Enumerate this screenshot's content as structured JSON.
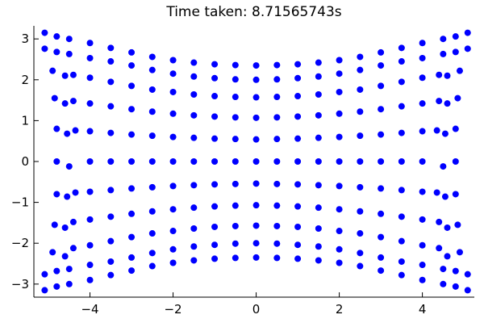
{
  "chart_data": {
    "type": "scatter",
    "title": "Time taken: 8.71565743s",
    "xlabel": "",
    "ylabel": "",
    "xlim": [
      -5.35,
      5.25
    ],
    "ylim": [
      -3.32,
      3.32
    ],
    "xticks": [
      -4,
      -2,
      0,
      2,
      4
    ],
    "yticks": [
      -3,
      -2,
      -1,
      0,
      1,
      2,
      3
    ],
    "xtick_labels": [
      "−4",
      "−2",
      "0",
      "2",
      "4"
    ],
    "ytick_labels": [
      "−3",
      "−2",
      "−1",
      "0",
      "1",
      "2",
      "3"
    ],
    "grid": false,
    "legend": "none",
    "marker_color": "#0000ff",
    "series": [
      {
        "x": [
          -5.09,
          -4.8,
          -4.5,
          -4.0,
          -3.5,
          -3.0,
          -2.5,
          -2.0,
          -1.5,
          -1.0,
          -0.5,
          0.0,
          0.5,
          1.0,
          1.5,
          2.0,
          2.5,
          3.0,
          3.5,
          4.0,
          4.5,
          4.8,
          5.09,
          -5.09,
          -4.8,
          -4.5,
          -4.0,
          -3.5,
          -3.0,
          -2.5,
          -2.0,
          -1.5,
          -1.0,
          -0.5,
          0.0,
          0.5,
          1.0,
          1.5,
          2.0,
          2.5,
          3.0,
          3.5,
          4.0,
          4.5,
          4.8,
          5.09,
          -4.9,
          -4.6,
          -4.4,
          -4.0,
          -3.5,
          -3.0,
          -2.5,
          -2.0,
          -1.5,
          -1.0,
          -0.5,
          0.0,
          0.5,
          1.0,
          1.5,
          2.0,
          2.5,
          3.0,
          3.5,
          4.0,
          4.4,
          4.6,
          4.9,
          -4.85,
          -4.6,
          -4.4,
          -4.0,
          -3.5,
          -3.0,
          -2.5,
          -2.0,
          -1.5,
          -1.0,
          -0.5,
          0.0,
          0.5,
          1.0,
          1.5,
          2.0,
          2.5,
          3.0,
          3.5,
          4.0,
          4.4,
          4.6,
          4.85,
          -4.8,
          -4.55,
          -4.35,
          -4.0,
          -3.5,
          -3.0,
          -2.5,
          -2.0,
          -1.5,
          -1.0,
          -0.5,
          0.0,
          0.5,
          1.0,
          1.5,
          2.0,
          2.5,
          3.0,
          3.5,
          4.0,
          4.35,
          4.55,
          4.8,
          -4.8,
          -4.5,
          -4.0,
          -3.5,
          -3.0,
          -2.5,
          -2.0,
          -1.5,
          -1.0,
          -0.5,
          0.0,
          0.5,
          1.0,
          1.5,
          2.0,
          2.5,
          3.0,
          3.5,
          4.0,
          4.5,
          4.8,
          -4.8,
          -4.55,
          -4.35,
          -4.0,
          -3.5,
          -3.0,
          -2.5,
          -2.0,
          -1.5,
          -1.0,
          -0.5,
          0.0,
          0.5,
          1.0,
          1.5,
          2.0,
          2.5,
          3.0,
          3.5,
          4.0,
          4.35,
          4.55,
          4.8,
          -4.85,
          -4.6,
          -4.4,
          -4.0,
          -3.5,
          -3.0,
          -2.5,
          -2.0,
          -1.5,
          -1.0,
          -0.5,
          0.0,
          0.5,
          1.0,
          1.5,
          2.0,
          2.5,
          3.0,
          3.5,
          4.0,
          4.4,
          4.6,
          4.85,
          -4.9,
          -4.6,
          -4.4,
          -4.0,
          -3.5,
          -3.0,
          -2.5,
          -2.0,
          -1.5,
          -1.0,
          -0.5,
          0.0,
          0.5,
          1.0,
          1.5,
          2.0,
          2.5,
          3.0,
          3.5,
          4.0,
          4.4,
          4.6,
          4.9,
          -5.09,
          -4.8,
          -4.5,
          -4.0,
          -3.5,
          -3.0,
          -2.5,
          -2.0,
          -1.5,
          -1.0,
          -0.5,
          0.0,
          0.5,
          1.0,
          1.5,
          2.0,
          2.5,
          3.0,
          3.5,
          4.0,
          4.5,
          4.8,
          5.09,
          -5.09,
          -4.8,
          -4.5,
          -4.0,
          -3.5,
          -3.0,
          -2.5,
          -2.0,
          -1.5,
          -1.0,
          -0.5,
          0.0,
          0.5,
          1.0,
          1.5,
          2.0,
          2.5,
          3.0,
          3.5,
          4.0,
          4.5,
          4.8,
          5.09
        ],
        "y": [
          3.15,
          3.06,
          3.0,
          2.9,
          2.78,
          2.67,
          2.56,
          2.48,
          2.42,
          2.38,
          2.36,
          2.35,
          2.36,
          2.38,
          2.42,
          2.48,
          2.56,
          2.67,
          2.78,
          2.9,
          3.0,
          3.06,
          3.15,
          2.76,
          2.68,
          2.63,
          2.53,
          2.45,
          2.35,
          2.24,
          2.15,
          2.08,
          2.04,
          2.01,
          2.0,
          2.01,
          2.04,
          2.08,
          2.15,
          2.24,
          2.35,
          2.45,
          2.53,
          2.63,
          2.68,
          2.76,
          2.22,
          2.1,
          2.12,
          2.05,
          1.95,
          1.85,
          1.76,
          1.7,
          1.64,
          1.6,
          1.58,
          1.57,
          1.58,
          1.6,
          1.64,
          1.7,
          1.76,
          1.85,
          1.95,
          2.05,
          2.12,
          2.1,
          2.22,
          1.55,
          1.42,
          1.48,
          1.42,
          1.35,
          1.28,
          1.22,
          1.17,
          1.13,
          1.1,
          1.08,
          1.07,
          1.08,
          1.1,
          1.13,
          1.17,
          1.22,
          1.28,
          1.35,
          1.42,
          1.48,
          1.42,
          1.55,
          0.8,
          0.68,
          0.76,
          0.74,
          0.7,
          0.66,
          0.63,
          0.6,
          0.58,
          0.56,
          0.55,
          0.54,
          0.55,
          0.56,
          0.58,
          0.6,
          0.63,
          0.66,
          0.7,
          0.74,
          0.76,
          0.68,
          0.8,
          0.0,
          -0.12,
          0.0,
          0.0,
          0.0,
          0.0,
          0.0,
          0.0,
          0.0,
          0.0,
          0.0,
          0.0,
          0.0,
          0.0,
          0.0,
          0.0,
          0.0,
          0.0,
          0.0,
          -0.12,
          0.0,
          -0.8,
          -0.86,
          -0.76,
          -0.74,
          -0.7,
          -0.66,
          -0.63,
          -0.6,
          -0.58,
          -0.56,
          -0.55,
          -0.54,
          -0.55,
          -0.56,
          -0.58,
          -0.6,
          -0.63,
          -0.66,
          -0.7,
          -0.74,
          -0.76,
          -0.86,
          -0.8,
          -1.55,
          -1.62,
          -1.48,
          -1.42,
          -1.35,
          -1.28,
          -1.22,
          -1.17,
          -1.13,
          -1.1,
          -1.08,
          -1.07,
          -1.08,
          -1.1,
          -1.13,
          -1.17,
          -1.22,
          -1.28,
          -1.35,
          -1.42,
          -1.48,
          -1.62,
          -1.55,
          -2.22,
          -2.32,
          -2.12,
          -2.05,
          -1.95,
          -1.85,
          -1.76,
          -1.7,
          -1.64,
          -1.6,
          -1.58,
          -1.57,
          -1.58,
          -1.6,
          -1.64,
          -1.7,
          -1.76,
          -1.85,
          -1.95,
          -2.05,
          -2.12,
          -2.32,
          -2.22,
          -2.76,
          -2.68,
          -2.63,
          -2.53,
          -2.45,
          -2.35,
          -2.24,
          -2.15,
          -2.08,
          -2.04,
          -2.01,
          -2.0,
          -2.01,
          -2.04,
          -2.08,
          -2.15,
          -2.24,
          -2.35,
          -2.45,
          -2.53,
          -2.63,
          -2.68,
          -2.76,
          -3.15,
          -3.06,
          -3.0,
          -2.9,
          -2.78,
          -2.67,
          -2.56,
          -2.48,
          -2.42,
          -2.38,
          -2.36,
          -2.35,
          -2.36,
          -2.38,
          -2.42,
          -2.48,
          -2.56,
          -2.67,
          -2.78,
          -2.9,
          -3.0,
          -3.06,
          -3.15
        ]
      }
    ]
  }
}
